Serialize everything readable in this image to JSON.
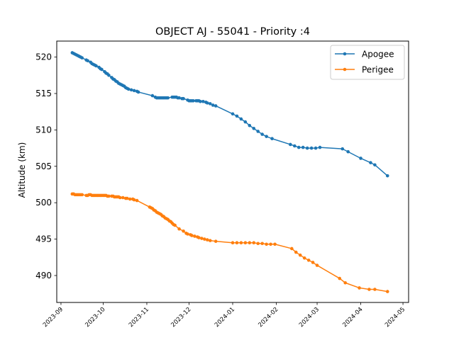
{
  "chart_data": {
    "type": "line",
    "title": "OBJECT AJ - 55041 - Priority :4",
    "xlabel": "",
    "ylabel": "Altitude (km)",
    "xlim": [
      "2023-08-29",
      "2024-05-05"
    ],
    "ylim": [
      486.3,
      522.2
    ],
    "x_ticks": [
      "2023-09",
      "2023-10",
      "2023-11",
      "2023-12",
      "2024-01",
      "2024-02",
      "2024-03",
      "2024-04",
      "2024-05"
    ],
    "y_ticks": [
      490,
      495,
      500,
      505,
      510,
      515,
      520
    ],
    "grid": false,
    "legend_position": "top-right",
    "series": [
      {
        "name": "Apogee",
        "color": "#1f77b4",
        "points": [
          [
            "2023-09-09",
            520.6
          ],
          [
            "2023-09-10",
            520.5
          ],
          [
            "2023-09-11",
            520.4
          ],
          [
            "2023-09-12",
            520.3
          ],
          [
            "2023-09-13",
            520.2
          ],
          [
            "2023-09-14",
            520.1
          ],
          [
            "2023-09-15",
            520.0
          ],
          [
            "2023-09-16",
            519.9
          ],
          [
            "2023-09-19",
            519.6
          ],
          [
            "2023-09-20",
            519.5
          ],
          [
            "2023-09-22",
            519.3
          ],
          [
            "2023-09-23",
            519.1
          ],
          [
            "2023-09-24",
            519.0
          ],
          [
            "2023-09-25",
            518.9
          ],
          [
            "2023-09-26",
            518.8
          ],
          [
            "2023-09-28",
            518.6
          ],
          [
            "2023-09-29",
            518.4
          ],
          [
            "2023-09-30",
            518.3
          ],
          [
            "2023-10-02",
            518.0
          ],
          [
            "2023-10-03",
            517.8
          ],
          [
            "2023-10-04",
            517.7
          ],
          [
            "2023-10-05",
            517.5
          ],
          [
            "2023-10-07",
            517.2
          ],
          [
            "2023-10-08",
            517.0
          ],
          [
            "2023-10-09",
            516.9
          ],
          [
            "2023-10-10",
            516.7
          ],
          [
            "2023-10-11",
            516.6
          ],
          [
            "2023-10-12",
            516.4
          ],
          [
            "2023-10-13",
            516.3
          ],
          [
            "2023-10-14",
            516.2
          ],
          [
            "2023-10-15",
            516.1
          ],
          [
            "2023-10-16",
            516.0
          ],
          [
            "2023-10-17",
            515.8
          ],
          [
            "2023-10-18",
            515.7
          ],
          [
            "2023-10-19",
            515.6
          ],
          [
            "2023-10-21",
            515.5
          ],
          [
            "2023-10-23",
            515.4
          ],
          [
            "2023-10-25",
            515.3
          ],
          [
            "2023-10-26",
            515.2
          ],
          [
            "2023-11-05",
            514.7
          ],
          [
            "2023-11-07",
            514.5
          ],
          [
            "2023-11-08",
            514.4
          ],
          [
            "2023-11-09",
            514.4
          ],
          [
            "2023-11-10",
            514.4
          ],
          [
            "2023-11-11",
            514.4
          ],
          [
            "2023-11-12",
            514.4
          ],
          [
            "2023-11-13",
            514.4
          ],
          [
            "2023-11-14",
            514.4
          ],
          [
            "2023-11-15",
            514.4
          ],
          [
            "2023-11-16",
            514.4
          ],
          [
            "2023-11-19",
            514.5
          ],
          [
            "2023-11-20",
            514.5
          ],
          [
            "2023-11-21",
            514.5
          ],
          [
            "2023-11-22",
            514.5
          ],
          [
            "2023-11-23",
            514.4
          ],
          [
            "2023-11-24",
            514.4
          ],
          [
            "2023-11-26",
            514.3
          ],
          [
            "2023-11-27",
            514.3
          ],
          [
            "2023-11-30",
            514.1
          ],
          [
            "2023-12-01",
            514.0
          ],
          [
            "2023-12-02",
            514.0
          ],
          [
            "2023-12-03",
            514.0
          ],
          [
            "2023-12-04",
            514.0
          ],
          [
            "2023-12-06",
            514.0
          ],
          [
            "2023-12-07",
            514.0
          ],
          [
            "2023-12-08",
            514.0
          ],
          [
            "2023-12-09",
            513.9
          ],
          [
            "2023-12-11",
            513.9
          ],
          [
            "2023-12-13",
            513.8
          ],
          [
            "2023-12-14",
            513.7
          ],
          [
            "2023-12-16",
            513.6
          ],
          [
            "2023-12-18",
            513.4
          ],
          [
            "2023-12-20",
            513.3
          ],
          [
            "2024-01-01",
            512.2
          ],
          [
            "2024-01-04",
            511.9
          ],
          [
            "2024-01-07",
            511.5
          ],
          [
            "2024-01-10",
            511.1
          ],
          [
            "2024-01-13",
            510.6
          ],
          [
            "2024-01-16",
            510.2
          ],
          [
            "2024-01-19",
            509.8
          ],
          [
            "2024-01-22",
            509.4
          ],
          [
            "2024-01-25",
            509.1
          ],
          [
            "2024-01-29",
            508.8
          ],
          [
            "2024-02-11",
            508.0
          ],
          [
            "2024-02-14",
            507.8
          ],
          [
            "2024-02-17",
            507.6
          ],
          [
            "2024-02-20",
            507.6
          ],
          [
            "2024-02-23",
            507.5
          ],
          [
            "2024-02-26",
            507.5
          ],
          [
            "2024-02-29",
            507.5
          ],
          [
            "2024-03-03",
            507.6
          ],
          [
            "2024-03-19",
            507.4
          ],
          [
            "2024-03-23",
            507.0
          ],
          [
            "2024-04-01",
            506.1
          ],
          [
            "2024-04-08",
            505.5
          ],
          [
            "2024-04-11",
            505.2
          ],
          [
            "2024-04-20",
            503.7
          ]
        ]
      },
      {
        "name": "Perigee",
        "color": "#ff7f0e",
        "points": [
          [
            "2023-09-09",
            501.2
          ],
          [
            "2023-09-10",
            501.2
          ],
          [
            "2023-09-11",
            501.1
          ],
          [
            "2023-09-12",
            501.1
          ],
          [
            "2023-09-13",
            501.1
          ],
          [
            "2023-09-14",
            501.1
          ],
          [
            "2023-09-15",
            501.1
          ],
          [
            "2023-09-16",
            501.1
          ],
          [
            "2023-09-19",
            501.0
          ],
          [
            "2023-09-20",
            501.0
          ],
          [
            "2023-09-21",
            501.1
          ],
          [
            "2023-09-22",
            501.1
          ],
          [
            "2023-09-23",
            501.0
          ],
          [
            "2023-09-24",
            501.0
          ],
          [
            "2023-09-25",
            501.0
          ],
          [
            "2023-09-26",
            501.0
          ],
          [
            "2023-09-27",
            501.0
          ],
          [
            "2023-09-28",
            501.0
          ],
          [
            "2023-09-29",
            501.0
          ],
          [
            "2023-09-30",
            501.0
          ],
          [
            "2023-10-01",
            501.0
          ],
          [
            "2023-10-02",
            501.0
          ],
          [
            "2023-10-03",
            501.0
          ],
          [
            "2023-10-04",
            500.9
          ],
          [
            "2023-10-05",
            500.9
          ],
          [
            "2023-10-07",
            500.9
          ],
          [
            "2023-10-08",
            500.9
          ],
          [
            "2023-10-09",
            500.8
          ],
          [
            "2023-10-10",
            500.8
          ],
          [
            "2023-10-11",
            500.8
          ],
          [
            "2023-10-12",
            500.8
          ],
          [
            "2023-10-13",
            500.7
          ],
          [
            "2023-10-15",
            500.7
          ],
          [
            "2023-10-17",
            500.6
          ],
          [
            "2023-10-18",
            500.6
          ],
          [
            "2023-10-20",
            500.5
          ],
          [
            "2023-10-22",
            500.5
          ],
          [
            "2023-10-23",
            500.4
          ],
          [
            "2023-10-25",
            500.3
          ],
          [
            "2023-11-03",
            499.4
          ],
          [
            "2023-11-04",
            499.3
          ],
          [
            "2023-11-05",
            499.2
          ],
          [
            "2023-11-06",
            499.0
          ],
          [
            "2023-11-07",
            498.9
          ],
          [
            "2023-11-08",
            498.7
          ],
          [
            "2023-11-09",
            498.6
          ],
          [
            "2023-11-10",
            498.5
          ],
          [
            "2023-11-11",
            498.4
          ],
          [
            "2023-11-12",
            498.2
          ],
          [
            "2023-11-13",
            498.1
          ],
          [
            "2023-11-14",
            497.9
          ],
          [
            "2023-11-15",
            497.8
          ],
          [
            "2023-11-16",
            497.7
          ],
          [
            "2023-11-17",
            497.5
          ],
          [
            "2023-11-18",
            497.4
          ],
          [
            "2023-11-19",
            497.2
          ],
          [
            "2023-11-20",
            497.0
          ],
          [
            "2023-11-21",
            496.9
          ],
          [
            "2023-11-24",
            496.4
          ],
          [
            "2023-11-27",
            496.1
          ],
          [
            "2023-11-29",
            495.8
          ],
          [
            "2023-11-30",
            495.7
          ],
          [
            "2023-12-02",
            495.6
          ],
          [
            "2023-12-03",
            495.5
          ],
          [
            "2023-12-05",
            495.4
          ],
          [
            "2023-12-07",
            495.3
          ],
          [
            "2023-12-08",
            495.2
          ],
          [
            "2023-12-10",
            495.1
          ],
          [
            "2023-12-12",
            495.0
          ],
          [
            "2023-12-14",
            494.9
          ],
          [
            "2023-12-16",
            494.8
          ],
          [
            "2023-12-20",
            494.7
          ],
          [
            "2024-01-01",
            494.5
          ],
          [
            "2024-01-04",
            494.5
          ],
          [
            "2024-01-07",
            494.5
          ],
          [
            "2024-01-10",
            494.5
          ],
          [
            "2024-01-13",
            494.5
          ],
          [
            "2024-01-16",
            494.5
          ],
          [
            "2024-01-19",
            494.4
          ],
          [
            "2024-01-22",
            494.4
          ],
          [
            "2024-01-25",
            494.3
          ],
          [
            "2024-01-28",
            494.3
          ],
          [
            "2024-01-31",
            494.3
          ],
          [
            "2024-02-12",
            493.7
          ],
          [
            "2024-02-15",
            493.2
          ],
          [
            "2024-02-18",
            492.8
          ],
          [
            "2024-02-21",
            492.4
          ],
          [
            "2024-02-24",
            492.1
          ],
          [
            "2024-02-27",
            491.8
          ],
          [
            "2024-03-01",
            491.4
          ],
          [
            "2024-03-17",
            489.6
          ],
          [
            "2024-03-21",
            489.0
          ],
          [
            "2024-03-31",
            488.3
          ],
          [
            "2024-04-07",
            488.1
          ],
          [
            "2024-04-11",
            488.1
          ],
          [
            "2024-04-20",
            487.8
          ]
        ]
      }
    ]
  }
}
